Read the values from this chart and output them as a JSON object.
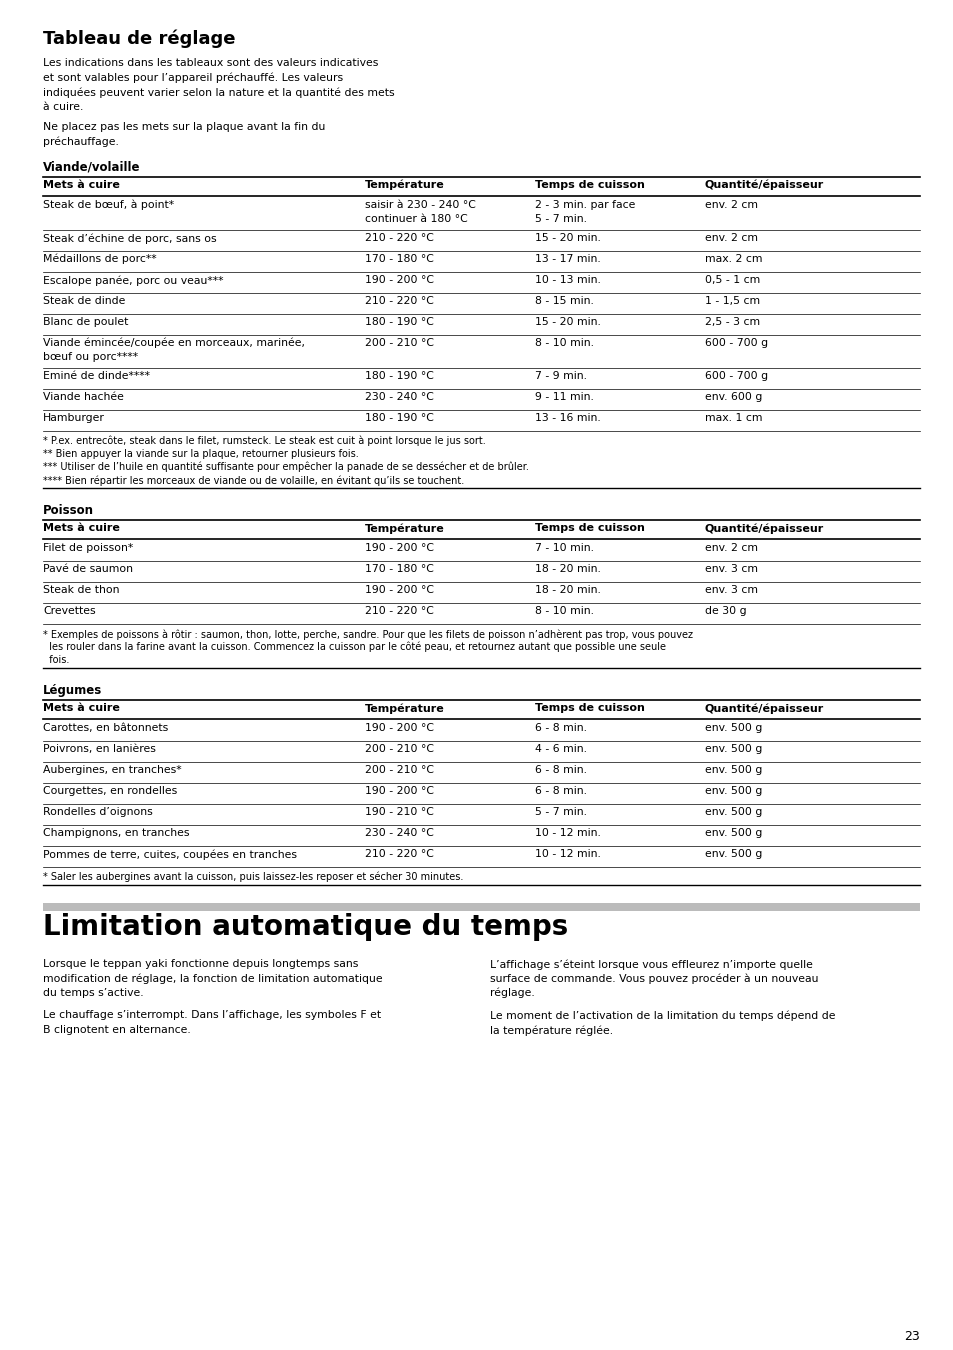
{
  "title": "Tableau de réglage",
  "section1_title": "Viande/volaille",
  "table1_headers": [
    "Mets à cuire",
    "Température",
    "Temps de cuisson",
    "Quantité/épaisseur"
  ],
  "table1_rows": [
    [
      "Steak de bœuf, à point*",
      "saisir à 230 - 240 °C\ncontinuer à 180 °C",
      "2 - 3 min. par face\n5 - 7 min.",
      "env. 2 cm"
    ],
    [
      "Steak d’échine de porc, sans os",
      "210 - 220 °C",
      "15 - 20 min.",
      "env. 2 cm"
    ],
    [
      "Médaillons de porc**",
      "170 - 180 °C",
      "13 - 17 min.",
      "max. 2 cm"
    ],
    [
      "Escalope panée, porc ou veau***",
      "190 - 200 °C",
      "10 - 13 min.",
      "0,5 - 1 cm"
    ],
    [
      "Steak de dinde",
      "210 - 220 °C",
      "8 - 15 min.",
      "1 - 1,5 cm"
    ],
    [
      "Blanc de poulet",
      "180 - 190 °C",
      "15 - 20 min.",
      "2,5 - 3 cm"
    ],
    [
      "Viande émincée/coupée en morceaux, marinée,\nbœuf ou porc****",
      "200 - 210 °C",
      "8 - 10 min.",
      "600 - 700 g"
    ],
    [
      "Eminé de dinde****",
      "180 - 190 °C",
      "7 - 9 min.",
      "600 - 700 g"
    ],
    [
      "Viande hachée",
      "230 - 240 °C",
      "9 - 11 min.",
      "env. 600 g"
    ],
    [
      "Hamburger",
      "180 - 190 °C",
      "13 - 16 min.",
      "max. 1 cm"
    ]
  ],
  "table1_notes": [
    "* P.ex. entrecôte, steak dans le filet, rumsteck. Le steak est cuit à point lorsque le jus sort.",
    "** Bien appuyer la viande sur la plaque, retourner plusieurs fois.",
    "*** Utiliser de l’huile en quantité suffisante pour empêcher la panade de se dessécher et de brûler.",
    "**** Bien répartir les morceaux de viande ou de volaille, en évitant qu’ils se touchent."
  ],
  "section2_title": "Poisson",
  "table2_headers": [
    "Mets à cuire",
    "Température",
    "Temps de cuisson",
    "Quantité/épaisseur"
  ],
  "table2_rows": [
    [
      "Filet de poisson*",
      "190 - 200 °C",
      "7 - 10 min.",
      "env. 2 cm"
    ],
    [
      "Pavé de saumon",
      "170 - 180 °C",
      "18 - 20 min.",
      "env. 3 cm"
    ],
    [
      "Steak de thon",
      "190 - 200 °C",
      "18 - 20 min.",
      "env. 3 cm"
    ],
    [
      "Crevettes",
      "210 - 220 °C",
      "8 - 10 min.",
      "de 30 g"
    ]
  ],
  "table2_notes": [
    "* Exemples de poissons à rôtir : saumon, thon, lotte, perche, sandre. Pour que les filets de poisson n’adhèrent pas trop, vous pouvez",
    "  les rouler dans la farine avant la cuisson. Commencez la cuisson par le côté peau, et retournez autant que possible une seule",
    "  fois."
  ],
  "section3_title": "Légumes",
  "table3_headers": [
    "Mets à cuire",
    "Température",
    "Temps de cuisson",
    "Quantité/épaisseur"
  ],
  "table3_rows": [
    [
      "Carottes, en bâtonnets",
      "190 - 200 °C",
      "6 - 8 min.",
      "env. 500 g"
    ],
    [
      "Poivrons, en lanières",
      "200 - 210 °C",
      "4 - 6 min.",
      "env. 500 g"
    ],
    [
      "Aubergines, en tranches*",
      "200 - 210 °C",
      "6 - 8 min.",
      "env. 500 g"
    ],
    [
      "Courgettes, en rondelles",
      "190 - 200 °C",
      "6 - 8 min.",
      "env. 500 g"
    ],
    [
      "Rondelles d’oignons",
      "190 - 210 °C",
      "5 - 7 min.",
      "env. 500 g"
    ],
    [
      "Champignons, en tranches",
      "230 - 240 °C",
      "10 - 12 min.",
      "env. 500 g"
    ],
    [
      "Pommes de terre, cuites, coupées en tranches",
      "210 - 220 °C",
      "10 - 12 min.",
      "env. 500 g"
    ]
  ],
  "table3_notes": [
    "* Saler les aubergines avant la cuisson, puis laissez-les reposer et sécher 30 minutes."
  ],
  "section4_title": "Limitation automatique du temps",
  "section4_col1_para1": [
    "Lorsque le teppan yaki fonctionne depuis longtemps sans",
    "modification de réglage, la fonction de limitation automatique",
    "du temps s’active."
  ],
  "section4_col1_para2": [
    "Le chauffage s’interrompt. Dans l’affichage, les symboles F et",
    "B clignotent en alternance."
  ],
  "section4_col2_para1": [
    "L’affichage s’éteint lorsque vous effleurez n’importe quelle",
    "surface de commande. Vous pouvez procéder à un nouveau",
    "réglage."
  ],
  "section4_col2_para2": [
    "Le moment de l’activation de la limitation du temps dépend de",
    "la température réglée."
  ],
  "intro_lines": [
    "Les indications dans les tableaux sont des valeurs indicatives",
    "et sont valables pour l’appareil préchauffé. Les valeurs",
    "indiquées peuvent varier selon la nature et la quantité des mets",
    "à cuire."
  ],
  "intro_lines2": [
    "Ne placez pas les mets sur la plaque avant la fin du",
    "préchauffage."
  ],
  "page_number": "23",
  "bg_color": "#ffffff"
}
